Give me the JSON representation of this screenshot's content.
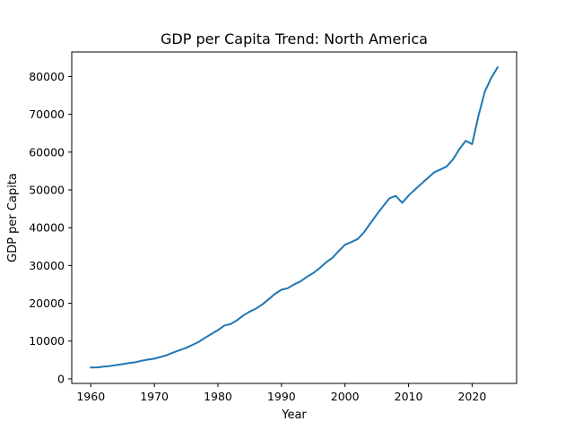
{
  "chart_data": {
    "type": "line",
    "title": "GDP per Capita Trend: North America",
    "xlabel": "Year",
    "ylabel": "GDP per Capita",
    "xlim": [
      1957,
      2027
    ],
    "ylim": [
      -1200,
      86500
    ],
    "xticks": [
      1960,
      1970,
      1980,
      1990,
      2000,
      2010,
      2020
    ],
    "yticks": [
      0,
      10000,
      20000,
      30000,
      40000,
      50000,
      60000,
      70000,
      80000
    ],
    "grid": false,
    "series": [
      {
        "color": "#1f77b4",
        "x": [
          1960,
          1961,
          1962,
          1963,
          1964,
          1965,
          1966,
          1967,
          1968,
          1969,
          1970,
          1971,
          1972,
          1973,
          1974,
          1975,
          1976,
          1977,
          1978,
          1979,
          1980,
          1981,
          1982,
          1983,
          1984,
          1985,
          1986,
          1987,
          1988,
          1989,
          1990,
          1991,
          1992,
          1993,
          1994,
          1995,
          1996,
          1997,
          1998,
          1999,
          2000,
          2001,
          2002,
          2003,
          2004,
          2005,
          2006,
          2007,
          2008,
          2009,
          2010,
          2011,
          2012,
          2013,
          2014,
          2015,
          2016,
          2017,
          2018,
          2019,
          2020,
          2021,
          2022,
          2023,
          2024
        ],
        "values": [
          3000,
          3050,
          3250,
          3400,
          3650,
          3900,
          4200,
          4400,
          4800,
          5100,
          5350,
          5800,
          6300,
          7000,
          7600,
          8200,
          9000,
          9800,
          10900,
          11900,
          12900,
          14100,
          14500,
          15500,
          16800,
          17800,
          18600,
          19700,
          21100,
          22500,
          23600,
          24000,
          25000,
          25800,
          27000,
          28000,
          29300,
          30800,
          32000,
          33800,
          35500,
          36200,
          37000,
          38800,
          41200,
          43500,
          45700,
          47800,
          48400,
          46600,
          48500,
          50100,
          51600,
          53100,
          54600,
          55400,
          56200,
          58100,
          60800,
          63000,
          62100,
          69600,
          76000,
          79600,
          82400
        ]
      }
    ]
  }
}
